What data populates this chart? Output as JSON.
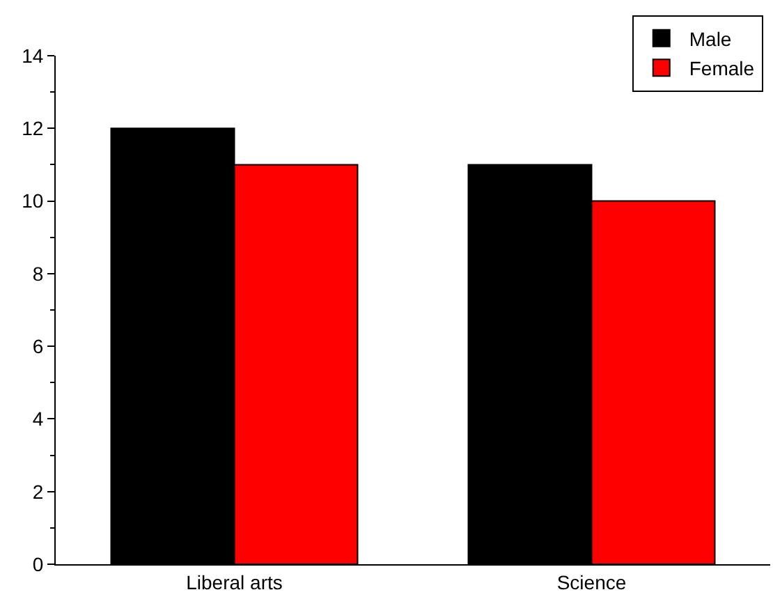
{
  "chart_data": {
    "type": "bar",
    "categories": [
      "Liberal arts",
      "Science"
    ],
    "series": [
      {
        "name": "Male",
        "color": "#000000",
        "values": [
          12,
          11
        ]
      },
      {
        "name": "Female",
        "color": "#ff0000",
        "values": [
          11,
          10
        ]
      }
    ],
    "ylim": [
      0,
      14
    ],
    "yticks": [
      0,
      2,
      4,
      6,
      8,
      10,
      12,
      14
    ],
    "legend": "top right"
  }
}
